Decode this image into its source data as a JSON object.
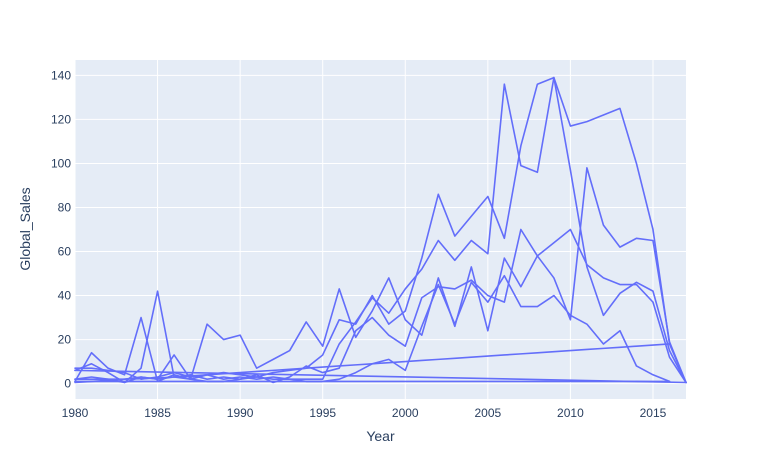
{
  "chart_data": {
    "type": "line",
    "xlabel": "Year",
    "ylabel": "Global_Sales",
    "xlim": [
      1980,
      2017
    ],
    "ylim": [
      -7,
      147
    ],
    "x_ticks": [
      1980,
      1985,
      1990,
      1995,
      2000,
      2005,
      2010,
      2015
    ],
    "y_ticks": [
      0,
      20,
      40,
      60,
      80,
      100,
      120,
      140
    ],
    "grid": true,
    "legend": "none",
    "colors": {
      "plot_bg": "#e5ecf6",
      "trace": "#636efa",
      "grid": "#ffffff",
      "text": "#2a3f5f"
    },
    "series": [
      {
        "x": [
          1980,
          1981,
          1982,
          1983,
          1984,
          1985,
          1986,
          1987,
          1988,
          1989,
          1990,
          1991,
          1992,
          1993,
          1994,
          1995,
          1996,
          1997,
          1998,
          1999,
          2000,
          2001,
          2002,
          2003,
          2004,
          2005,
          2006,
          2007,
          2008,
          2009,
          2010,
          2011,
          2012,
          2013,
          2014,
          2015,
          2016
        ],
        "y": [
          0.5,
          1,
          1.5,
          2,
          2.2,
          2.5,
          3,
          3.5,
          4,
          4.5,
          5,
          5.5,
          6,
          6.5,
          7,
          7.5,
          8,
          8.5,
          9,
          9.5,
          10,
          10.5,
          11,
          11.5,
          12,
          12.5,
          13,
          13.5,
          14,
          14.5,
          15,
          15.5,
          16,
          16.5,
          17,
          17.5,
          18
        ]
      },
      {
        "x": [
          1980,
          1981,
          1982,
          1983,
          1984,
          1985,
          1986,
          1987,
          1988,
          1989,
          1990,
          1991,
          1992,
          1993,
          1994,
          1995,
          1996,
          1997,
          1998,
          1999,
          2000,
          2001,
          2002,
          2003,
          2004,
          2005,
          2006,
          2007,
          2008,
          2009,
          2010,
          2011,
          2012,
          2013,
          2014,
          2015,
          2016,
          2017
        ],
        "y": [
          7,
          7,
          6,
          5,
          2,
          3,
          5,
          3,
          4,
          2,
          3,
          2,
          3,
          2,
          2,
          2,
          18,
          28,
          39,
          32,
          43,
          52,
          65,
          56,
          65,
          59,
          136,
          99,
          96,
          139,
          117,
          119,
          122,
          125,
          100,
          70,
          18,
          0.5
        ]
      },
      {
        "x": [
          1980,
          1981,
          1982,
          1983,
          1984,
          1985,
          1986,
          1987,
          1988,
          1989,
          1990,
          1991,
          1992,
          1993,
          1994,
          1995,
          1996,
          1997,
          1998,
          1999,
          2000,
          2001,
          2002,
          2003,
          2004,
          2005,
          2006,
          2007,
          2008,
          2009,
          2010,
          2011,
          2012,
          2013,
          2014,
          2015,
          2016,
          2017
        ],
        "y": [
          1,
          14,
          7,
          4,
          30,
          1,
          4,
          2,
          4,
          5,
          4,
          3,
          5,
          6,
          7,
          13,
          29,
          27,
          40,
          27,
          33,
          57,
          86,
          67,
          76,
          85,
          66,
          108,
          136,
          139,
          97,
          53,
          31,
          41,
          46,
          42,
          15,
          0.5
        ]
      },
      {
        "x": [
          1980,
          1981,
          1982,
          1983,
          1984,
          1985,
          1986,
          1987,
          1988,
          1989,
          1990,
          1991,
          1992,
          1993,
          1994,
          1995,
          1996,
          1997,
          1998,
          1999,
          2000,
          2001,
          2002,
          2003,
          2004,
          2005,
          2006,
          2007,
          2008,
          2009,
          2010,
          2011,
          2012,
          2013,
          2014,
          2015,
          2016,
          2017
        ],
        "y": [
          2,
          3,
          2,
          0.5,
          7,
          42,
          3,
          2,
          27,
          20,
          22,
          7,
          11,
          15,
          28,
          17,
          43,
          21,
          33,
          48,
          29,
          22,
          48,
          26,
          53,
          24,
          57,
          44,
          58,
          64,
          70,
          54,
          48,
          45,
          45,
          37,
          12,
          0.5
        ]
      },
      {
        "x": [
          1980,
          1981,
          1982,
          1983,
          1984,
          1985,
          1986,
          1987,
          1988,
          1989,
          1990,
          1991,
          1992,
          1993,
          1994,
          1995,
          1996,
          1997,
          1998,
          1999,
          2000,
          2001,
          2002,
          2003,
          2004,
          2005,
          2006,
          2007,
          2008,
          2009,
          2010,
          2011,
          2012,
          2013,
          2014,
          2015,
          2016,
          2017
        ],
        "y": [
          6,
          9,
          5,
          0.5,
          3,
          2,
          13,
          2,
          1,
          1,
          2,
          4,
          0.5,
          3,
          8,
          5,
          7,
          24,
          30,
          22,
          17,
          39,
          44,
          43,
          47,
          40,
          37,
          70,
          58,
          48,
          29,
          98,
          72,
          62,
          66,
          65,
          19,
          0.5
        ]
      },
      {
        "x": [
          1980,
          1981,
          1982,
          1983,
          1984,
          1985,
          1986,
          1987,
          1988,
          1989,
          1990,
          1991,
          1992,
          1993,
          1994,
          1995,
          1996,
          1997,
          1998,
          1999,
          2000,
          2001,
          2002,
          2003,
          2004,
          2005,
          2006,
          2007,
          2008,
          2009,
          2010,
          2011,
          2012,
          2013,
          2014,
          2015,
          2016
        ],
        "y": [
          2,
          2,
          2,
          2,
          3,
          2,
          3,
          4,
          2,
          3,
          2,
          3,
          2,
          2,
          1,
          1,
          2,
          5,
          9,
          11,
          6,
          26,
          45,
          27,
          46,
          37,
          49,
          35,
          35,
          40,
          31,
          27,
          18,
          24,
          8,
          4,
          1
        ]
      },
      {
        "x": [
          1980,
          2017
        ],
        "y": [
          6,
          0.5
        ]
      },
      {
        "x": [
          1980,
          2016
        ],
        "y": [
          1,
          1
        ]
      }
    ]
  }
}
